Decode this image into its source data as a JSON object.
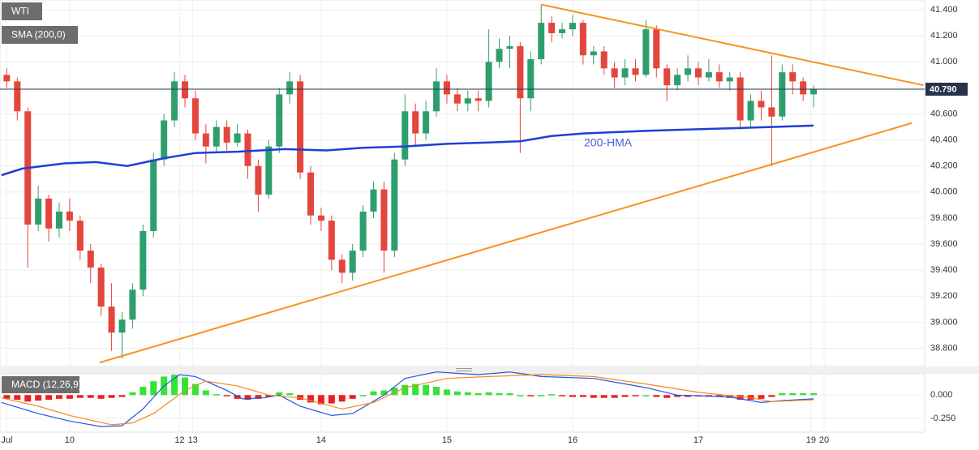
{
  "chart_data": [
    {
      "type": "candlestick",
      "title": "WTI",
      "x": [
        -12,
        -10,
        -8,
        -6,
        -4,
        -2,
        0,
        2,
        4,
        6,
        8,
        10,
        12,
        14,
        16,
        18,
        20,
        22,
        24,
        26,
        28,
        30,
        32,
        34,
        36,
        38,
        40,
        42,
        44,
        46,
        48,
        50,
        52,
        54,
        56,
        58,
        60,
        62,
        64,
        66,
        68,
        70,
        72,
        74,
        76,
        78,
        80,
        82,
        84,
        86,
        88,
        90,
        92,
        94,
        96,
        98,
        100,
        102,
        104,
        106,
        108,
        110,
        112,
        114,
        116,
        118,
        120,
        122,
        124,
        126,
        128,
        130,
        132,
        134,
        136,
        138,
        140,
        142
      ],
      "open": [
        40.9,
        40.85,
        40.62,
        39.75,
        39.95,
        39.72,
        39.85,
        39.78,
        39.55,
        39.42,
        39.12,
        38.92,
        39.02,
        39.25,
        39.7,
        40.25,
        40.55,
        40.85,
        40.72,
        40.45,
        40.35,
        40.5,
        40.38,
        40.45,
        40.2,
        39.98,
        40.35,
        40.75,
        40.85,
        40.15,
        39.82,
        39.78,
        39.48,
        39.38,
        39.55,
        39.85,
        40.02,
        39.55,
        40.25,
        40.62,
        40.45,
        40.62,
        40.85,
        40.75,
        40.68,
        40.72,
        40.7,
        41.0,
        41.1,
        41.12,
        40.72,
        41.02,
        41.3,
        41.22,
        41.25,
        41.3,
        41.05,
        41.08,
        40.95,
        40.88,
        40.95,
        40.9,
        41.25,
        40.95,
        40.82,
        40.9,
        40.95,
        40.88,
        40.92,
        40.85,
        40.88,
        40.55,
        40.7,
        40.65,
        40.58,
        40.92,
        40.85,
        40.75
      ],
      "high": [
        40.95,
        40.88,
        40.65,
        40.05,
        39.98,
        39.92,
        39.95,
        39.82,
        39.6,
        39.45,
        39.3,
        39.08,
        39.3,
        39.75,
        40.3,
        40.6,
        40.92,
        40.9,
        40.78,
        40.52,
        40.55,
        40.55,
        40.52,
        40.48,
        40.25,
        40.4,
        40.8,
        40.92,
        40.9,
        40.2,
        39.88,
        39.82,
        39.52,
        39.6,
        39.9,
        40.08,
        40.08,
        40.3,
        40.75,
        40.68,
        40.7,
        40.95,
        40.9,
        40.8,
        40.78,
        40.78,
        41.25,
        41.18,
        41.2,
        41.15,
        41.08,
        41.44,
        41.35,
        41.3,
        41.36,
        41.32,
        41.12,
        41.12,
        41.0,
        41.02,
        41.02,
        41.32,
        41.28,
        40.98,
        40.95,
        41.05,
        41.0,
        41.02,
        40.98,
        40.92,
        40.92,
        40.75,
        40.78,
        41.05,
        40.98,
        40.98,
        40.88,
        40.82
      ],
      "low": [
        40.8,
        40.55,
        39.42,
        39.7,
        39.62,
        39.65,
        39.7,
        39.48,
        39.3,
        39.05,
        38.78,
        38.72,
        38.95,
        39.2,
        39.65,
        40.2,
        40.5,
        40.65,
        40.4,
        40.22,
        40.3,
        40.32,
        40.35,
        40.1,
        39.85,
        39.95,
        40.3,
        40.68,
        40.1,
        39.75,
        39.7,
        39.4,
        39.3,
        39.32,
        39.5,
        39.8,
        39.38,
        39.5,
        40.2,
        40.35,
        40.4,
        40.58,
        40.68,
        40.62,
        40.62,
        40.62,
        40.65,
        40.95,
        40.95,
        40.3,
        40.62,
        40.98,
        41.15,
        41.18,
        41.2,
        40.98,
        40.98,
        40.9,
        40.8,
        40.82,
        40.85,
        40.88,
        40.88,
        40.7,
        40.78,
        40.85,
        40.82,
        40.85,
        40.8,
        40.78,
        40.48,
        40.5,
        40.55,
        40.2,
        40.55,
        40.75,
        40.7,
        40.65
      ],
      "close": [
        40.85,
        40.62,
        39.75,
        39.95,
        39.72,
        39.85,
        39.78,
        39.55,
        39.42,
        39.12,
        38.92,
        39.02,
        39.25,
        39.7,
        40.25,
        40.55,
        40.85,
        40.72,
        40.45,
        40.35,
        40.5,
        40.38,
        40.45,
        40.2,
        39.98,
        40.35,
        40.75,
        40.85,
        40.15,
        39.82,
        39.78,
        39.48,
        39.38,
        39.55,
        39.85,
        40.02,
        39.55,
        40.25,
        40.62,
        40.45,
        40.62,
        40.85,
        40.75,
        40.68,
        40.72,
        40.7,
        41.0,
        41.1,
        41.12,
        40.72,
        41.02,
        41.3,
        41.22,
        41.25,
        41.3,
        41.05,
        41.08,
        40.95,
        40.88,
        40.95,
        40.9,
        41.25,
        40.95,
        40.82,
        40.9,
        40.95,
        40.88,
        40.92,
        40.85,
        40.88,
        40.55,
        40.7,
        40.65,
        40.58,
        40.92,
        40.85,
        40.75,
        40.79
      ],
      "up_color": "#2f9e6e",
      "down_color": "#e4453c",
      "xlim": [
        -13.3,
        163.2
      ],
      "xticks": [
        {
          "value": -12,
          "label": "Jul"
        },
        {
          "value": 0,
          "label": "10"
        },
        {
          "value": 21,
          "label": "12"
        },
        {
          "value": 23.5,
          "label": "13"
        },
        {
          "value": 48,
          "label": "14"
        },
        {
          "value": 72,
          "label": "15"
        },
        {
          "value": 96,
          "label": "16"
        },
        {
          "value": 120,
          "label": "17"
        },
        {
          "value": 141.5,
          "label": "19"
        },
        {
          "value": 144,
          "label": "20"
        }
      ],
      "ylim": [
        38.66,
        41.475
      ],
      "yticks": [
        {
          "value": 38.8,
          "label": "38.800"
        },
        {
          "value": 39.0,
          "label": "39.000"
        },
        {
          "value": 39.2,
          "label": "39.200"
        },
        {
          "value": 39.4,
          "label": "39.400"
        },
        {
          "value": 39.6,
          "label": "39.600"
        },
        {
          "value": 39.8,
          "label": "39.800"
        },
        {
          "value": 40.0,
          "label": "40.000"
        },
        {
          "value": 40.2,
          "label": "40.200"
        },
        {
          "value": 40.4,
          "label": "40.400"
        },
        {
          "value": 40.6,
          "label": "40.600"
        },
        {
          "value": 40.8,
          "label": "40.800"
        },
        {
          "value": 41.0,
          "label": "41.000"
        },
        {
          "value": 41.2,
          "label": "41.200"
        },
        {
          "value": 41.4,
          "label": "41.400"
        }
      ],
      "grid": true,
      "series": [
        {
          "name": "SMA (200,0)",
          "color": "#1f3fd6",
          "x": [
            -13,
            -9,
            -1,
            5,
            11,
            18,
            24,
            32,
            41,
            49,
            56,
            64,
            72,
            80,
            86,
            92,
            98,
            104,
            110,
            118,
            126,
            134,
            142
          ],
          "values": [
            40.13,
            40.18,
            40.22,
            40.23,
            40.2,
            40.26,
            40.3,
            40.31,
            40.33,
            40.32,
            40.34,
            40.35,
            40.37,
            40.38,
            40.39,
            40.43,
            40.45,
            40.46,
            40.47,
            40.48,
            40.49,
            40.5,
            40.51
          ]
        }
      ],
      "annotations": [
        "200-HMA"
      ],
      "trendlines": [
        {
          "color": "#f7931e",
          "x": [
            90,
            163
          ],
          "values": [
            41.44,
            40.82
          ]
        },
        {
          "color": "#f7931e",
          "x": [
            5.7,
            160.8
          ],
          "values": [
            38.69,
            40.53
          ]
        }
      ],
      "last_price": {
        "value": 40.79,
        "label": "40.790"
      }
    },
    {
      "type": "macd",
      "title": "MACD (12,26,9)",
      "x": [
        -12,
        -10,
        -8,
        -6,
        -4,
        -2,
        0,
        2,
        4,
        6,
        8,
        10,
        12,
        14,
        16,
        18,
        20,
        22,
        24,
        26,
        28,
        30,
        32,
        34,
        36,
        38,
        40,
        42,
        44,
        46,
        48,
        50,
        52,
        54,
        56,
        58,
        60,
        62,
        64,
        66,
        68,
        70,
        72,
        74,
        76,
        78,
        80,
        82,
        84,
        86,
        88,
        90,
        92,
        94,
        96,
        98,
        100,
        102,
        104,
        106,
        108,
        110,
        112,
        114,
        116,
        118,
        120,
        122,
        124,
        126,
        128,
        130,
        132,
        134,
        136,
        138,
        140,
        142
      ],
      "values": [
        -0.04,
        -0.05,
        -0.07,
        -0.06,
        -0.05,
        -0.04,
        -0.04,
        -0.03,
        -0.03,
        -0.04,
        -0.03,
        -0.02,
        0.03,
        0.09,
        0.15,
        0.2,
        0.22,
        0.19,
        0.12,
        0.05,
        0.01,
        -0.01,
        -0.04,
        -0.05,
        -0.04,
        -0.02,
        0.03,
        0.02,
        -0.05,
        -0.08,
        -0.1,
        -0.09,
        -0.07,
        -0.04,
        0.0,
        0.04,
        0.05,
        0.08,
        0.11,
        0.12,
        0.11,
        0.09,
        0.06,
        0.04,
        0.03,
        0.02,
        0.03,
        0.02,
        0.02,
        0,
        -0.01,
        0,
        0.01,
        -0.01,
        -0.02,
        -0.02,
        -0.03,
        -0.03,
        -0.03,
        -0.02,
        -0.01,
        0,
        -0.02,
        -0.03,
        -0.02,
        -0.02,
        -0.01,
        -0.01,
        -0.02,
        -0.03,
        -0.05,
        -0.05,
        -0.04,
        -0.02,
        0.02,
        0.02,
        0.02,
        0.02
      ],
      "up_color": "#35e235",
      "down_color": "#ec1f1f",
      "ylim": [
        -0.4,
        0.23
      ],
      "yticks": [
        {
          "value": 0,
          "label": "0.000"
        },
        {
          "value": -0.25,
          "label": "-0.250"
        }
      ],
      "series": [
        {
          "color": "#2255dd",
          "x": [
            -13,
            -6,
            0,
            6,
            10,
            14,
            18,
            21,
            24,
            30,
            33,
            37,
            40,
            44,
            50,
            54,
            60,
            64,
            70,
            78,
            84,
            90,
            100,
            110,
            116,
            126,
            132,
            136,
            142
          ],
          "values": [
            -0.08,
            -0.2,
            -0.28,
            -0.34,
            -0.33,
            -0.15,
            0.1,
            0.22,
            0.2,
            0.05,
            -0.04,
            -0.03,
            0.0,
            -0.12,
            -0.22,
            -0.2,
            0.0,
            0.18,
            0.25,
            0.22,
            0.25,
            0.2,
            0.18,
            0.08,
            0.0,
            -0.02,
            -0.08,
            -0.06,
            -0.04
          ]
        },
        {
          "color": "#f08a24",
          "x": [
            -13,
            -6,
            0,
            8,
            12,
            16,
            22,
            26,
            32,
            38,
            44,
            52,
            58,
            64,
            72,
            80,
            90,
            100,
            110,
            120,
            130,
            134,
            142
          ],
          "values": [
            -0.03,
            -0.12,
            -0.22,
            -0.32,
            -0.3,
            -0.2,
            0.05,
            0.15,
            0.1,
            0.0,
            -0.03,
            -0.15,
            -0.08,
            0.08,
            0.18,
            0.2,
            0.22,
            0.2,
            0.12,
            0.03,
            -0.03,
            -0.07,
            -0.05
          ]
        }
      ]
    }
  ]
}
